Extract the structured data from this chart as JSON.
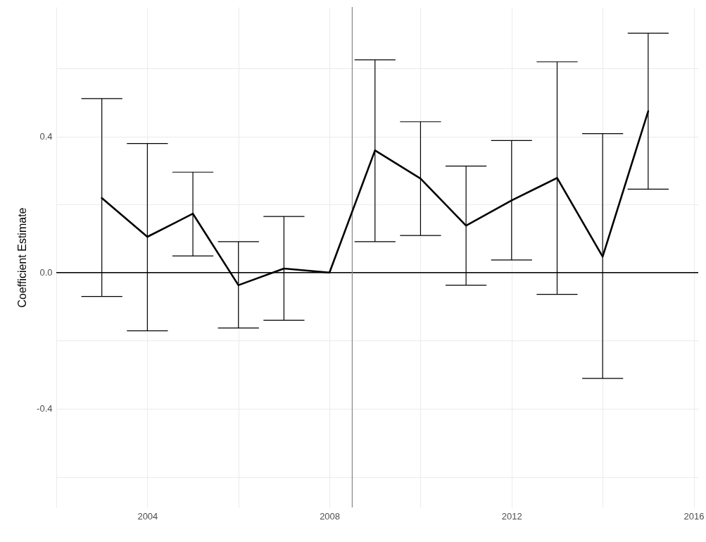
{
  "chart_data": {
    "type": "line",
    "ylabel": "Coefficient Estimate",
    "x": [
      2003,
      2004,
      2005,
      2006,
      2007,
      2008,
      2009,
      2010,
      2011,
      2012,
      2013,
      2014,
      2015
    ],
    "series": [
      {
        "color": "#000000",
        "values": [
          0.219,
          0.105,
          0.173,
          -0.037,
          0.012,
          0,
          0.359,
          0.276,
          0.138,
          0.212,
          0.278,
          0.047,
          0.474
        ],
        "errors": [
          [
            -0.07,
            0.511
          ],
          [
            -0.171,
            0.379
          ],
          [
            0.049,
            0.295
          ],
          [
            -0.163,
            0.091
          ],
          [
            -0.14,
            0.165
          ],
          null,
          [
            0.091,
            0.625
          ],
          [
            0.109,
            0.443
          ],
          [
            -0.037,
            0.313
          ],
          [
            0.037,
            0.388
          ],
          [
            -0.064,
            0.619
          ],
          [
            -0.311,
            0.408
          ],
          [
            0.245,
            0.703
          ]
        ]
      }
    ],
    "xlim": [
      2002,
      2016.1
    ],
    "ylim": [
      -0.69,
      0.78
    ],
    "xticks": [
      {
        "value": 2002,
        "label": null
      },
      2004,
      {
        "value": 2006,
        "label": null
      },
      2008,
      {
        "value": 2010,
        "label": null
      },
      2012,
      {
        "value": 2014,
        "label": null
      },
      2016
    ],
    "yticks": [
      {
        "value": -0.6,
        "label": null
      },
      -0.4,
      {
        "value": -0.2,
        "label": null
      },
      {
        "value": 0,
        "label": "0.0"
      },
      {
        "value": 0.2,
        "label": null
      },
      0.4,
      {
        "value": 0.6,
        "label": null
      }
    ],
    "ref_lines": [
      {
        "axis": "y",
        "value": 0,
        "color": "#000000"
      },
      {
        "axis": "x",
        "value": 2008.5,
        "color": "#8c8c8c"
      }
    ],
    "grid": true,
    "marker": "none",
    "line_style": "solid"
  }
}
